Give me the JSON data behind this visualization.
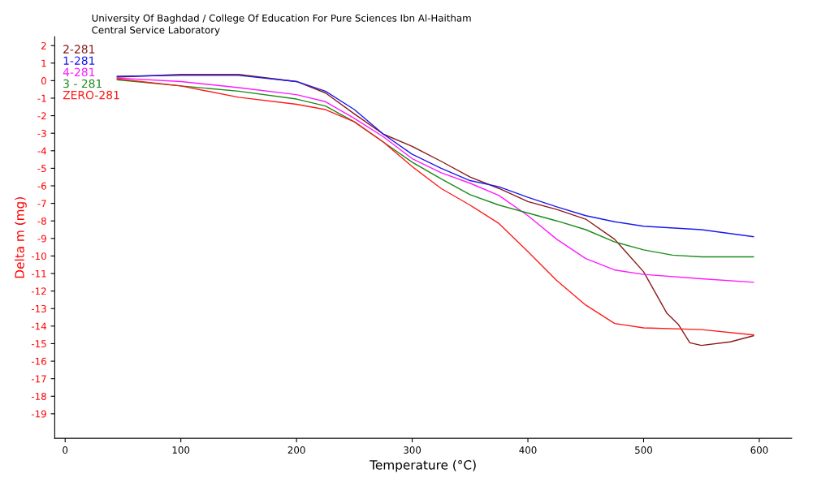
{
  "chart_data": {
    "type": "line",
    "title": "University Of Baghdad / College Of Education For Pure Sciences Ibn Al-Haitham",
    "subtitle": "Central Service Laboratory",
    "xlabel": "Temperature (°C)",
    "ylabel": "Delta m (mg)",
    "xlim": [
      -9,
      628
    ],
    "xticks": [
      0,
      100,
      200,
      300,
      400,
      500,
      600
    ],
    "ylim": [
      -20.4,
      2.5
    ],
    "yticks": [
      2,
      1,
      0,
      -1,
      -2,
      -3,
      -4,
      -5,
      -6,
      -7,
      -8,
      -9,
      -10,
      -11,
      -12,
      -13,
      -14,
      -15,
      -16,
      -17,
      -18,
      -19
    ],
    "grid": false,
    "legend": "top left",
    "marker": "none",
    "line_style": "solid",
    "series": [
      {
        "name": "2-281",
        "color": "#8b1a1a",
        "x": [
          45,
          100,
          150,
          200,
          225,
          250,
          275,
          300,
          325,
          350,
          375,
          400,
          425,
          450,
          475,
          500,
          520,
          530,
          540,
          550,
          575,
          595
        ],
        "values": [
          0.2,
          0.35,
          0.35,
          -0.05,
          -0.7,
          -1.9,
          -3.05,
          -3.75,
          -4.6,
          -5.5,
          -6.15,
          -6.9,
          -7.35,
          -7.9,
          -9.05,
          -10.9,
          -13.25,
          -13.9,
          -14.95,
          -15.1,
          -14.9,
          -14.55
        ]
      },
      {
        "name": "1-281",
        "color": "#1a1aee",
        "x": [
          45,
          100,
          150,
          200,
          225,
          250,
          275,
          300,
          325,
          350,
          375,
          400,
          425,
          450,
          475,
          500,
          550,
          595
        ],
        "values": [
          0.25,
          0.3,
          0.3,
          -0.05,
          -0.6,
          -1.65,
          -3.05,
          -4.2,
          -5.0,
          -5.7,
          -6.05,
          -6.65,
          -7.2,
          -7.7,
          -8.05,
          -8.3,
          -8.5,
          -8.9
        ]
      },
      {
        "name": "4-281",
        "color": "#ff1aff",
        "x": [
          45,
          100,
          150,
          200,
          225,
          250,
          275,
          300,
          325,
          350,
          375,
          400,
          425,
          450,
          475,
          500,
          550,
          595
        ],
        "values": [
          0.15,
          -0.05,
          -0.4,
          -0.8,
          -1.2,
          -2.15,
          -3.2,
          -4.45,
          -5.25,
          -5.85,
          -6.55,
          -7.7,
          -9.05,
          -10.15,
          -10.8,
          -11.05,
          -11.3,
          -11.5
        ]
      },
      {
        "name": "3 - 281",
        "color": "#1a8c1a",
        "x": [
          45,
          100,
          150,
          200,
          225,
          250,
          275,
          300,
          325,
          350,
          375,
          400,
          425,
          450,
          475,
          500,
          525,
          550,
          595
        ],
        "values": [
          0.05,
          -0.3,
          -0.6,
          -1.05,
          -1.45,
          -2.35,
          -3.5,
          -4.65,
          -5.6,
          -6.5,
          -7.1,
          -7.55,
          -8.0,
          -8.5,
          -9.2,
          -9.65,
          -9.95,
          -10.05,
          -10.05
        ]
      },
      {
        "name": "ZERO-281",
        "color": "#ff1a1a",
        "x": [
          45,
          100,
          150,
          200,
          225,
          250,
          275,
          300,
          325,
          350,
          375,
          400,
          425,
          450,
          475,
          500,
          550,
          595
        ],
        "values": [
          0.1,
          -0.3,
          -0.95,
          -1.35,
          -1.65,
          -2.35,
          -3.5,
          -4.9,
          -6.15,
          -7.1,
          -8.15,
          -9.75,
          -11.4,
          -12.8,
          -13.85,
          -14.1,
          -14.2,
          -14.5
        ]
      }
    ]
  }
}
